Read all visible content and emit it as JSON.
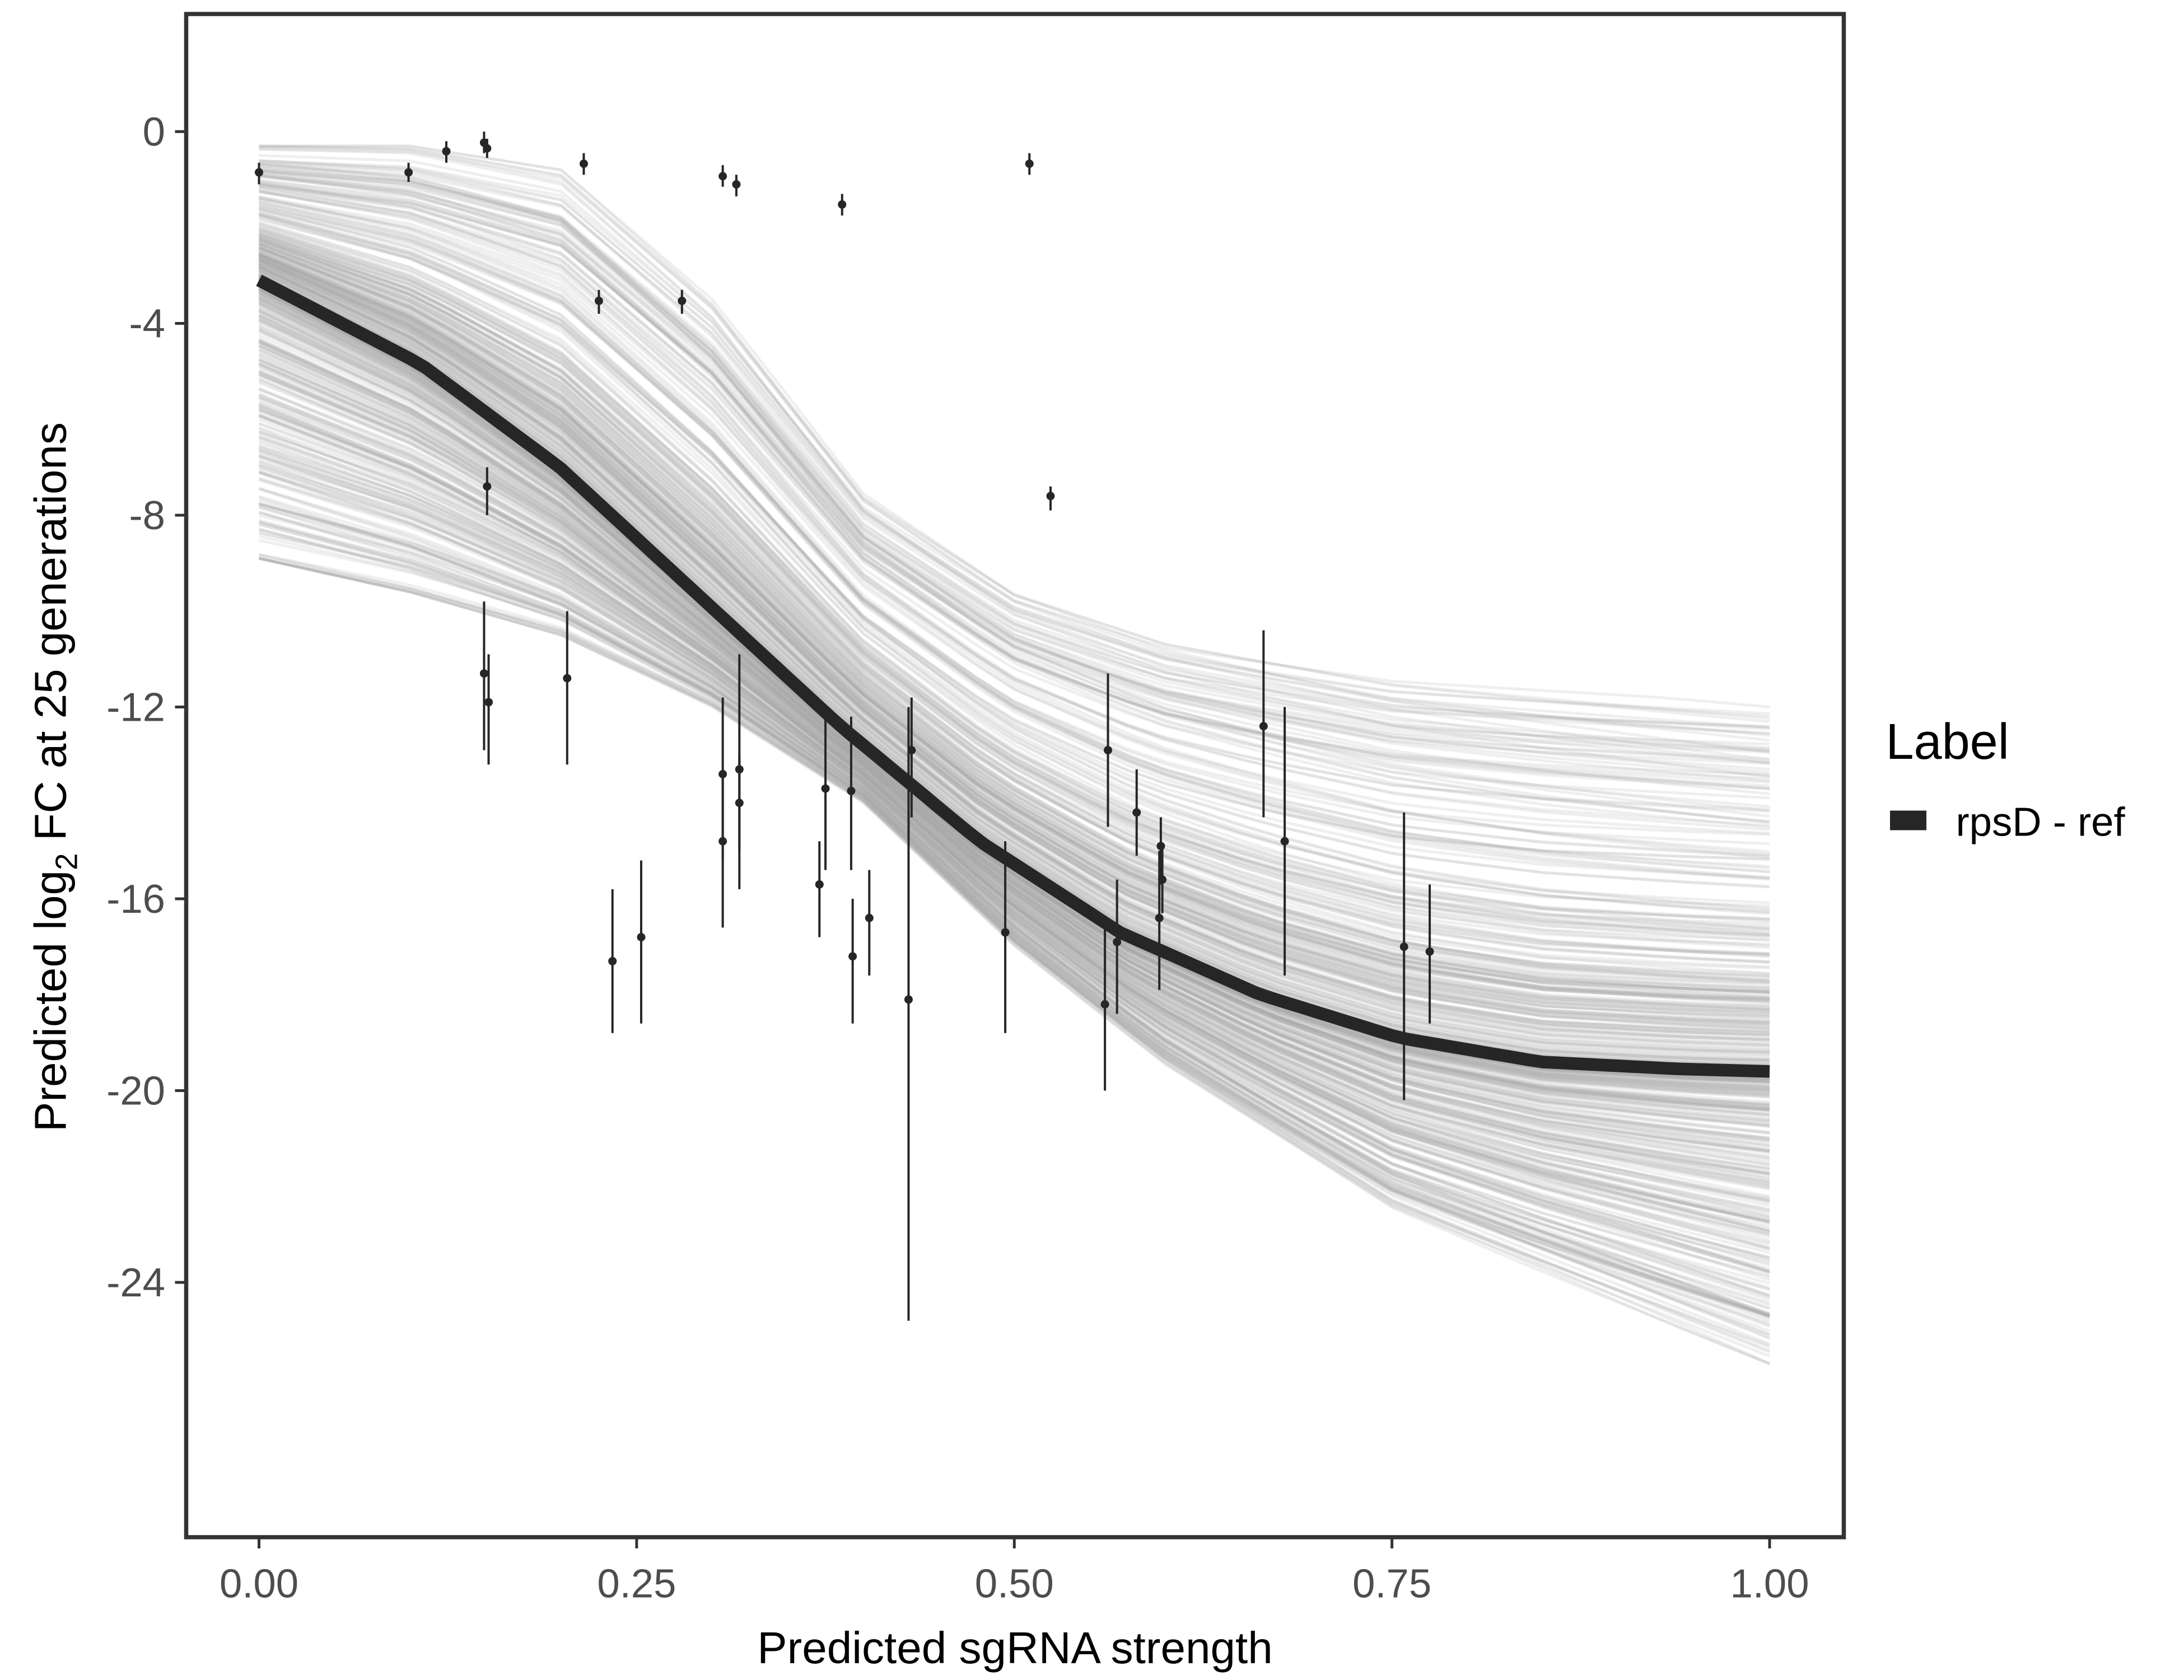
{
  "chart_data": {
    "type": "line",
    "title": "",
    "xlabel": "Predicted sgRNA strength",
    "ylabel_prefix": "Predicted  log",
    "ylabel_sub": "2",
    "ylabel_suffix": " FC at 25 generations",
    "xlim": [
      -0.05,
      1.05
    ],
    "ylim": [
      -29.3,
      2.4
    ],
    "xticks": [
      0,
      0.25,
      0.5,
      0.75,
      1
    ],
    "xtick_labels": [
      "0.00",
      "0.25",
      "0.50",
      "0.75",
      "1.00"
    ],
    "yticks": [
      0,
      -4,
      -8,
      -12,
      -16,
      -20,
      -24
    ],
    "ytick_labels": [
      "0",
      "-4",
      "-8",
      "-12",
      "-16",
      "-20",
      "-24"
    ],
    "grid": false,
    "legend": {
      "title": "Label",
      "placement": "right",
      "entries": [
        {
          "label": "rpsD - ref",
          "color": "#262626"
        }
      ]
    },
    "mean_curve": {
      "name": "rpsD - ref",
      "color": "#262626",
      "x": [
        0,
        0.107,
        0.199,
        0.292,
        0.385,
        0.477,
        0.57,
        0.663,
        0.755,
        0.848,
        0.941,
        1.0
      ],
      "y": [
        -3.1,
        -4.85,
        -7.0,
        -9.7,
        -12.4,
        -14.8,
        -16.7,
        -18.0,
        -18.9,
        -19.4,
        -19.55,
        -19.6
      ]
    },
    "posterior_band": {
      "color": "#a6a6a6",
      "n_draws": 500,
      "x": [
        0,
        0.1,
        0.2,
        0.3,
        0.4,
        0.5,
        0.6,
        0.75,
        1.0
      ],
      "upper": [
        -0.3,
        -0.3,
        -0.8,
        -3.5,
        -7.5,
        -9.5,
        -10.5,
        -11.3,
        -12.0
      ],
      "lower": [
        -8.9,
        -9.6,
        -10.5,
        -12.0,
        -14.0,
        -17.0,
        -19.5,
        -22.5,
        -25.7
      ]
    },
    "points": [
      {
        "x": 0.0,
        "y": -0.85,
        "lo": -1.1,
        "hi": -0.65
      },
      {
        "x": 0.099,
        "y": -0.85,
        "lo": -1.05,
        "hi": -0.65
      },
      {
        "x": 0.124,
        "y": -0.41,
        "lo": -0.65,
        "hi": -0.2
      },
      {
        "x": 0.149,
        "y": -0.23,
        "lo": -0.45,
        "hi": 0.0
      },
      {
        "x": 0.151,
        "y": -0.35,
        "lo": -0.55,
        "hi": -0.15
      },
      {
        "x": 0.215,
        "y": -0.67,
        "lo": -0.9,
        "hi": -0.45
      },
      {
        "x": 0.225,
        "y": -3.53,
        "lo": -3.8,
        "hi": -3.3
      },
      {
        "x": 0.28,
        "y": -3.53,
        "lo": -3.8,
        "hi": -3.3
      },
      {
        "x": 0.307,
        "y": -0.93,
        "lo": -1.15,
        "hi": -0.7
      },
      {
        "x": 0.316,
        "y": -1.1,
        "lo": -1.35,
        "hi": -0.9
      },
      {
        "x": 0.386,
        "y": -1.52,
        "lo": -1.75,
        "hi": -1.3
      },
      {
        "x": 0.51,
        "y": -0.67,
        "lo": -0.9,
        "hi": -0.45
      },
      {
        "x": 0.524,
        "y": -7.6,
        "lo": -7.9,
        "hi": -7.4
      },
      {
        "x": 0.151,
        "y": -7.4,
        "lo": -8.0,
        "hi": -7.0
      },
      {
        "x": 0.149,
        "y": -11.3,
        "lo": -12.9,
        "hi": -9.8
      },
      {
        "x": 0.152,
        "y": -11.9,
        "lo": -13.2,
        "hi": -10.9
      },
      {
        "x": 0.204,
        "y": -11.4,
        "lo": -13.2,
        "hi": -10.0
      },
      {
        "x": 0.234,
        "y": -17.3,
        "lo": -18.8,
        "hi": -15.8
      },
      {
        "x": 0.253,
        "y": -16.8,
        "lo": -18.6,
        "hi": -15.2
      },
      {
        "x": 0.307,
        "y": -13.4,
        "lo": -15.2,
        "hi": -11.8
      },
      {
        "x": 0.307,
        "y": -14.8,
        "lo": -16.6,
        "hi": -13.4
      },
      {
        "x": 0.318,
        "y": -13.3,
        "lo": -15.8,
        "hi": -10.9
      },
      {
        "x": 0.318,
        "y": -14.0,
        "lo": -15.0,
        "hi": -13.0
      },
      {
        "x": 0.371,
        "y": -15.7,
        "lo": -16.8,
        "hi": -14.8
      },
      {
        "x": 0.375,
        "y": -13.7,
        "lo": -15.4,
        "hi": -12.0
      },
      {
        "x": 0.392,
        "y": -13.75,
        "lo": -15.4,
        "hi": -12.2
      },
      {
        "x": 0.393,
        "y": -17.2,
        "lo": -18.6,
        "hi": -16.0
      },
      {
        "x": 0.404,
        "y": -16.4,
        "lo": -17.6,
        "hi": -15.4
      },
      {
        "x": 0.43,
        "y": -18.1,
        "lo": -24.8,
        "hi": -12.0
      },
      {
        "x": 0.432,
        "y": -12.9,
        "lo": -14.3,
        "hi": -11.8
      },
      {
        "x": 0.494,
        "y": -16.7,
        "lo": -18.8,
        "hi": -14.8
      },
      {
        "x": 0.562,
        "y": -12.9,
        "lo": -14.5,
        "hi": -11.3
      },
      {
        "x": 0.56,
        "y": -18.2,
        "lo": -20.0,
        "hi": -16.4
      },
      {
        "x": 0.568,
        "y": -16.9,
        "lo": -18.4,
        "hi": -15.6
      },
      {
        "x": 0.581,
        "y": -14.2,
        "lo": -15.1,
        "hi": -13.3
      },
      {
        "x": 0.597,
        "y": -14.9,
        "lo": -15.7,
        "hi": -14.3
      },
      {
        "x": 0.596,
        "y": -16.4,
        "lo": -17.9,
        "hi": -15.0
      },
      {
        "x": 0.598,
        "y": -15.6,
        "lo": -16.3,
        "hi": -14.9
      },
      {
        "x": 0.665,
        "y": -12.4,
        "lo": -14.3,
        "hi": -10.4
      },
      {
        "x": 0.679,
        "y": -14.8,
        "lo": -17.6,
        "hi": -12.0
      },
      {
        "x": 0.758,
        "y": -17.0,
        "lo": -20.2,
        "hi": -14.2
      },
      {
        "x": 0.775,
        "y": -17.1,
        "lo": -18.6,
        "hi": -15.7
      }
    ]
  }
}
